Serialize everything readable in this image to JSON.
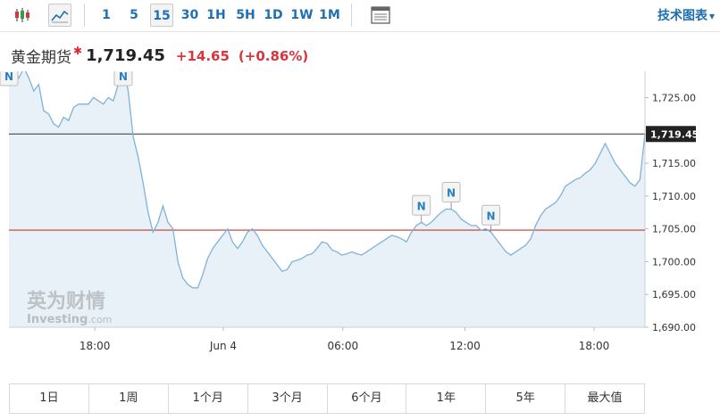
{
  "toolbar": {
    "timeframes": [
      "1",
      "5",
      "15",
      "30",
      "1H",
      "5H",
      "1D",
      "1W",
      "1M"
    ],
    "active_timeframe": "15",
    "tech_chart_label": "技术图表"
  },
  "quote": {
    "name": "黄金期货",
    "price": "1,719.45",
    "change": "+14.65",
    "change_pct": "(+0.86%)",
    "up_color": "#d9353f"
  },
  "watermark": {
    "cn": "英为财情",
    "en": "Investing",
    "suffix": ".com"
  },
  "chart_data": {
    "type": "area",
    "y_axis": {
      "range": [
        1690,
        1729
      ],
      "ticks": [
        "1,690.00",
        "1,695.00",
        "1,700.00",
        "1,705.00",
        "1,710.00",
        "1,715.00",
        "1,720.00",
        "1,725.00"
      ]
    },
    "x_ticks": [
      "18:00",
      "Jun 4",
      "06:00",
      "12:00",
      "18:00"
    ],
    "current_price_label": "1,719.45",
    "current_price": 1719.45,
    "reference_price": 1704.8,
    "line_color": "#7fb2d9",
    "fill_color": "#e8f1f8",
    "y_values": [
      1727.5,
      1729.5,
      1728.0,
      1729.5,
      1728.0,
      1726.0,
      1727.0,
      1723.0,
      1722.5,
      1721.0,
      1720.5,
      1722.0,
      1721.5,
      1723.5,
      1724.0,
      1724.0,
      1724.0,
      1725.0,
      1724.5,
      1724.0,
      1725.0,
      1724.5,
      1727.0,
      1730.0,
      1726.0,
      1719.0,
      1716.0,
      1712.0,
      1707.5,
      1704.5,
      1706.0,
      1708.5,
      1706.0,
      1705.0,
      1700.0,
      1697.5,
      1696.5,
      1696.0,
      1696.0,
      1698.0,
      1700.5,
      1702.0,
      1703.0,
      1704.0,
      1705.0,
      1703.0,
      1702.0,
      1703.0,
      1704.5,
      1705.0,
      1704.0,
      1702.5,
      1701.5,
      1700.5,
      1699.5,
      1698.5,
      1698.8,
      1700.0,
      1700.2,
      1700.5,
      1701.0,
      1701.2,
      1702.0,
      1703.0,
      1702.8,
      1701.8,
      1701.5,
      1701.0,
      1701.2,
      1701.5,
      1701.2,
      1701.0,
      1701.5,
      1702.0,
      1702.5,
      1703.0,
      1703.5,
      1704.0,
      1703.8,
      1703.5,
      1703.0,
      1704.5,
      1705.5,
      1706.0,
      1705.5,
      1706.0,
      1706.8,
      1707.5,
      1708.0,
      1708.0,
      1707.5,
      1706.5,
      1706.0,
      1705.5,
      1705.5,
      1704.8,
      1705.0,
      1704.5,
      1703.5,
      1702.5,
      1701.5,
      1701.0,
      1701.5,
      1702.0,
      1702.5,
      1703.5,
      1705.5,
      1707.0,
      1708.0,
      1708.5,
      1709.0,
      1710.0,
      1711.5,
      1712.0,
      1712.5,
      1712.8,
      1713.5,
      1714.0,
      1715.0,
      1716.5,
      1718.0,
      1716.5,
      1715.0,
      1714.0,
      1713.0,
      1712.0,
      1711.5,
      1712.5,
      1719.5
    ],
    "news_markers": [
      {
        "label": "N",
        "index": 0
      },
      {
        "label": "N",
        "index": 23
      },
      {
        "label": "N",
        "index": 83
      },
      {
        "label": "N",
        "index": 89
      },
      {
        "label": "N",
        "index": 97
      }
    ]
  },
  "ranges": [
    "1日",
    "1周",
    "1个月",
    "3个月",
    "6个月",
    "1年",
    "5年",
    "最大值"
  ]
}
